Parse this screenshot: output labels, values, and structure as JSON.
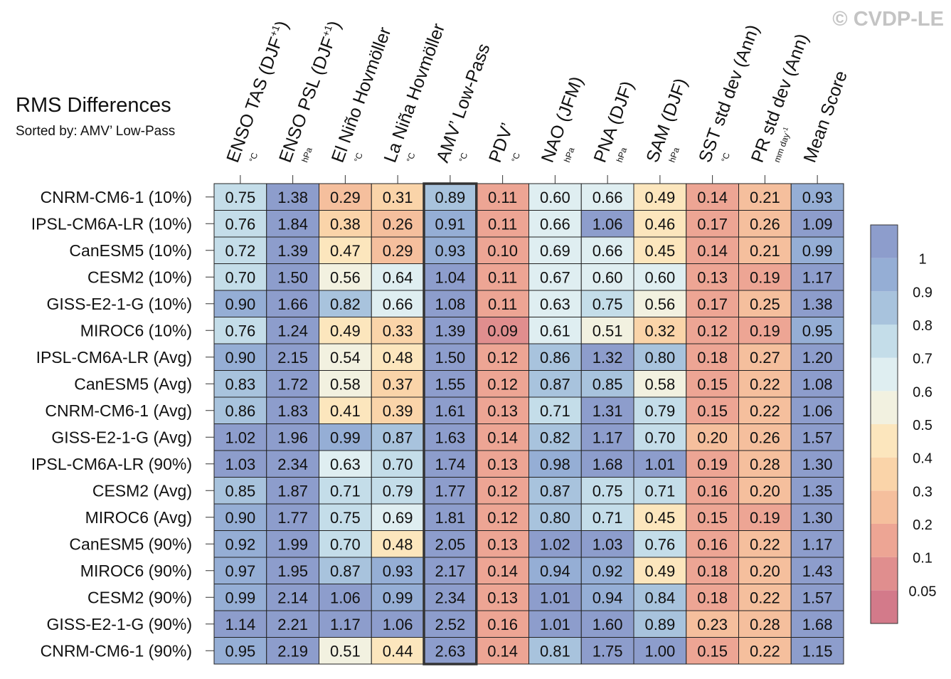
{
  "watermark": "© CVDP-LE",
  "title": "RMS Differences",
  "subtitle": "Sorted by: AMV’ Low-Pass",
  "chart_data": {
    "type": "heatmap",
    "columns": [
      {
        "label": "ENSO TAS (DJF",
        "sup": "+1",
        "close": ")",
        "unit": "°C"
      },
      {
        "label": "ENSO PSL (DJF",
        "sup": "+1",
        "close": ")",
        "unit": "hPa"
      },
      {
        "label": "El Niño Hovmöller",
        "sup": "",
        "close": "",
        "unit": "°C"
      },
      {
        "label": "La Niña Hovmöller",
        "sup": "",
        "close": "",
        "unit": "°C"
      },
      {
        "label": "AMV’ Low-Pass",
        "sup": "",
        "close": "",
        "unit": "°C"
      },
      {
        "label": "PDV’",
        "sup": "",
        "close": "",
        "unit": "°C"
      },
      {
        "label": "NAO (JFM)",
        "sup": "",
        "close": "",
        "unit": "hPa"
      },
      {
        "label": "PNA (DJF)",
        "sup": "",
        "close": "",
        "unit": "hPa"
      },
      {
        "label": "SAM (DJF)",
        "sup": "",
        "close": "",
        "unit": "hPa"
      },
      {
        "label": "SST std dev (Ann)",
        "sup": "",
        "close": "",
        "unit": "°C"
      },
      {
        "label": "PR std dev (Ann)",
        "sup": "",
        "close": "",
        "unit": "mm day",
        "unit_sup": "-1"
      },
      {
        "label": "Mean Score",
        "sup": "",
        "close": "",
        "unit": ""
      }
    ],
    "highlighted_column": "AMV’ Low-Pass",
    "rows": [
      "CNRM-CM6-1 (10%)",
      "IPSL-CM6A-LR (10%)",
      "CanESM5 (10%)",
      "CESM2 (10%)",
      "GISS-E2-1-G (10%)",
      "MIROC6 (10%)",
      "IPSL-CM6A-LR (Avg)",
      "CanESM5 (Avg)",
      "CNRM-CM6-1 (Avg)",
      "GISS-E2-1-G (Avg)",
      "IPSL-CM6A-LR (90%)",
      "CESM2 (Avg)",
      "MIROC6 (Avg)",
      "CanESM5 (90%)",
      "MIROC6 (90%)",
      "CESM2 (90%)",
      "GISS-E2-1-G (90%)",
      "CNRM-CM6-1 (90%)"
    ],
    "values": [
      [
        "0.75",
        "1.38",
        "0.29",
        "0.31",
        "0.89",
        "0.11",
        "0.60",
        "0.66",
        "0.49",
        "0.14",
        "0.21",
        "0.93"
      ],
      [
        "0.76",
        "1.84",
        "0.38",
        "0.26",
        "0.91",
        "0.11",
        "0.66",
        "1.06",
        "0.46",
        "0.17",
        "0.26",
        "1.09"
      ],
      [
        "0.72",
        "1.39",
        "0.47",
        "0.29",
        "0.93",
        "0.10",
        "0.69",
        "0.66",
        "0.45",
        "0.14",
        "0.21",
        "0.99"
      ],
      [
        "0.70",
        "1.50",
        "0.56",
        "0.64",
        "1.04",
        "0.11",
        "0.67",
        "0.60",
        "0.60",
        "0.13",
        "0.19",
        "1.17"
      ],
      [
        "0.90",
        "1.66",
        "0.82",
        "0.66",
        "1.08",
        "0.11",
        "0.63",
        "0.75",
        "0.56",
        "0.17",
        "0.25",
        "1.38"
      ],
      [
        "0.76",
        "1.24",
        "0.49",
        "0.33",
        "1.39",
        "0.09",
        "0.61",
        "0.51",
        "0.32",
        "0.12",
        "0.19",
        "0.95"
      ],
      [
        "0.90",
        "2.15",
        "0.54",
        "0.48",
        "1.50",
        "0.12",
        "0.86",
        "1.32",
        "0.80",
        "0.18",
        "0.27",
        "1.20"
      ],
      [
        "0.83",
        "1.72",
        "0.58",
        "0.37",
        "1.55",
        "0.12",
        "0.87",
        "0.85",
        "0.58",
        "0.15",
        "0.22",
        "1.08"
      ],
      [
        "0.86",
        "1.83",
        "0.41",
        "0.39",
        "1.61",
        "0.13",
        "0.71",
        "1.31",
        "0.79",
        "0.15",
        "0.22",
        "1.06"
      ],
      [
        "1.02",
        "1.96",
        "0.99",
        "0.87",
        "1.63",
        "0.14",
        "0.82",
        "1.17",
        "0.70",
        "0.20",
        "0.26",
        "1.57"
      ],
      [
        "1.03",
        "2.34",
        "0.63",
        "0.70",
        "1.74",
        "0.13",
        "0.98",
        "1.68",
        "1.01",
        "0.19",
        "0.28",
        "1.30"
      ],
      [
        "0.85",
        "1.87",
        "0.71",
        "0.79",
        "1.77",
        "0.12",
        "0.87",
        "0.75",
        "0.71",
        "0.16",
        "0.20",
        "1.35"
      ],
      [
        "0.90",
        "1.77",
        "0.75",
        "0.69",
        "1.81",
        "0.12",
        "0.80",
        "0.71",
        "0.45",
        "0.15",
        "0.19",
        "1.30"
      ],
      [
        "0.92",
        "1.99",
        "0.70",
        "0.48",
        "2.05",
        "0.13",
        "1.02",
        "1.03",
        "0.76",
        "0.16",
        "0.22",
        "1.17"
      ],
      [
        "0.97",
        "1.95",
        "0.87",
        "0.93",
        "2.17",
        "0.14",
        "0.94",
        "0.92",
        "0.49",
        "0.18",
        "0.20",
        "1.43"
      ],
      [
        "0.99",
        "2.14",
        "1.06",
        "0.99",
        "2.34",
        "0.13",
        "1.01",
        "0.94",
        "0.84",
        "0.18",
        "0.22",
        "1.57"
      ],
      [
        "1.14",
        "2.21",
        "1.17",
        "1.06",
        "2.52",
        "0.16",
        "1.01",
        "1.60",
        "0.89",
        "0.23",
        "0.28",
        "1.68"
      ],
      [
        "0.95",
        "2.19",
        "0.51",
        "0.44",
        "2.63",
        "0.14",
        "0.81",
        "1.75",
        "1.00",
        "0.15",
        "0.22",
        "1.15"
      ]
    ],
    "colorbar": {
      "levels": [
        0.05,
        0.1,
        0.2,
        0.3,
        0.4,
        0.5,
        0.6,
        0.7,
        0.8,
        0.9,
        1
      ],
      "tick_labels": [
        "0.05",
        "0.1",
        "0.2",
        "0.3",
        "0.4",
        "0.5",
        "0.6",
        "0.7",
        "0.8",
        "0.9",
        "1"
      ],
      "colors_bottom_to_top": [
        "#d37a8a",
        "#e08e8e",
        "#eda594",
        "#f5bf9d",
        "#fad4a9",
        "#fce6bd",
        "#f2f1e0",
        "#dfeef1",
        "#c4dde9",
        "#a8c3dd",
        "#95aed5",
        "#8d9dcc"
      ]
    }
  }
}
